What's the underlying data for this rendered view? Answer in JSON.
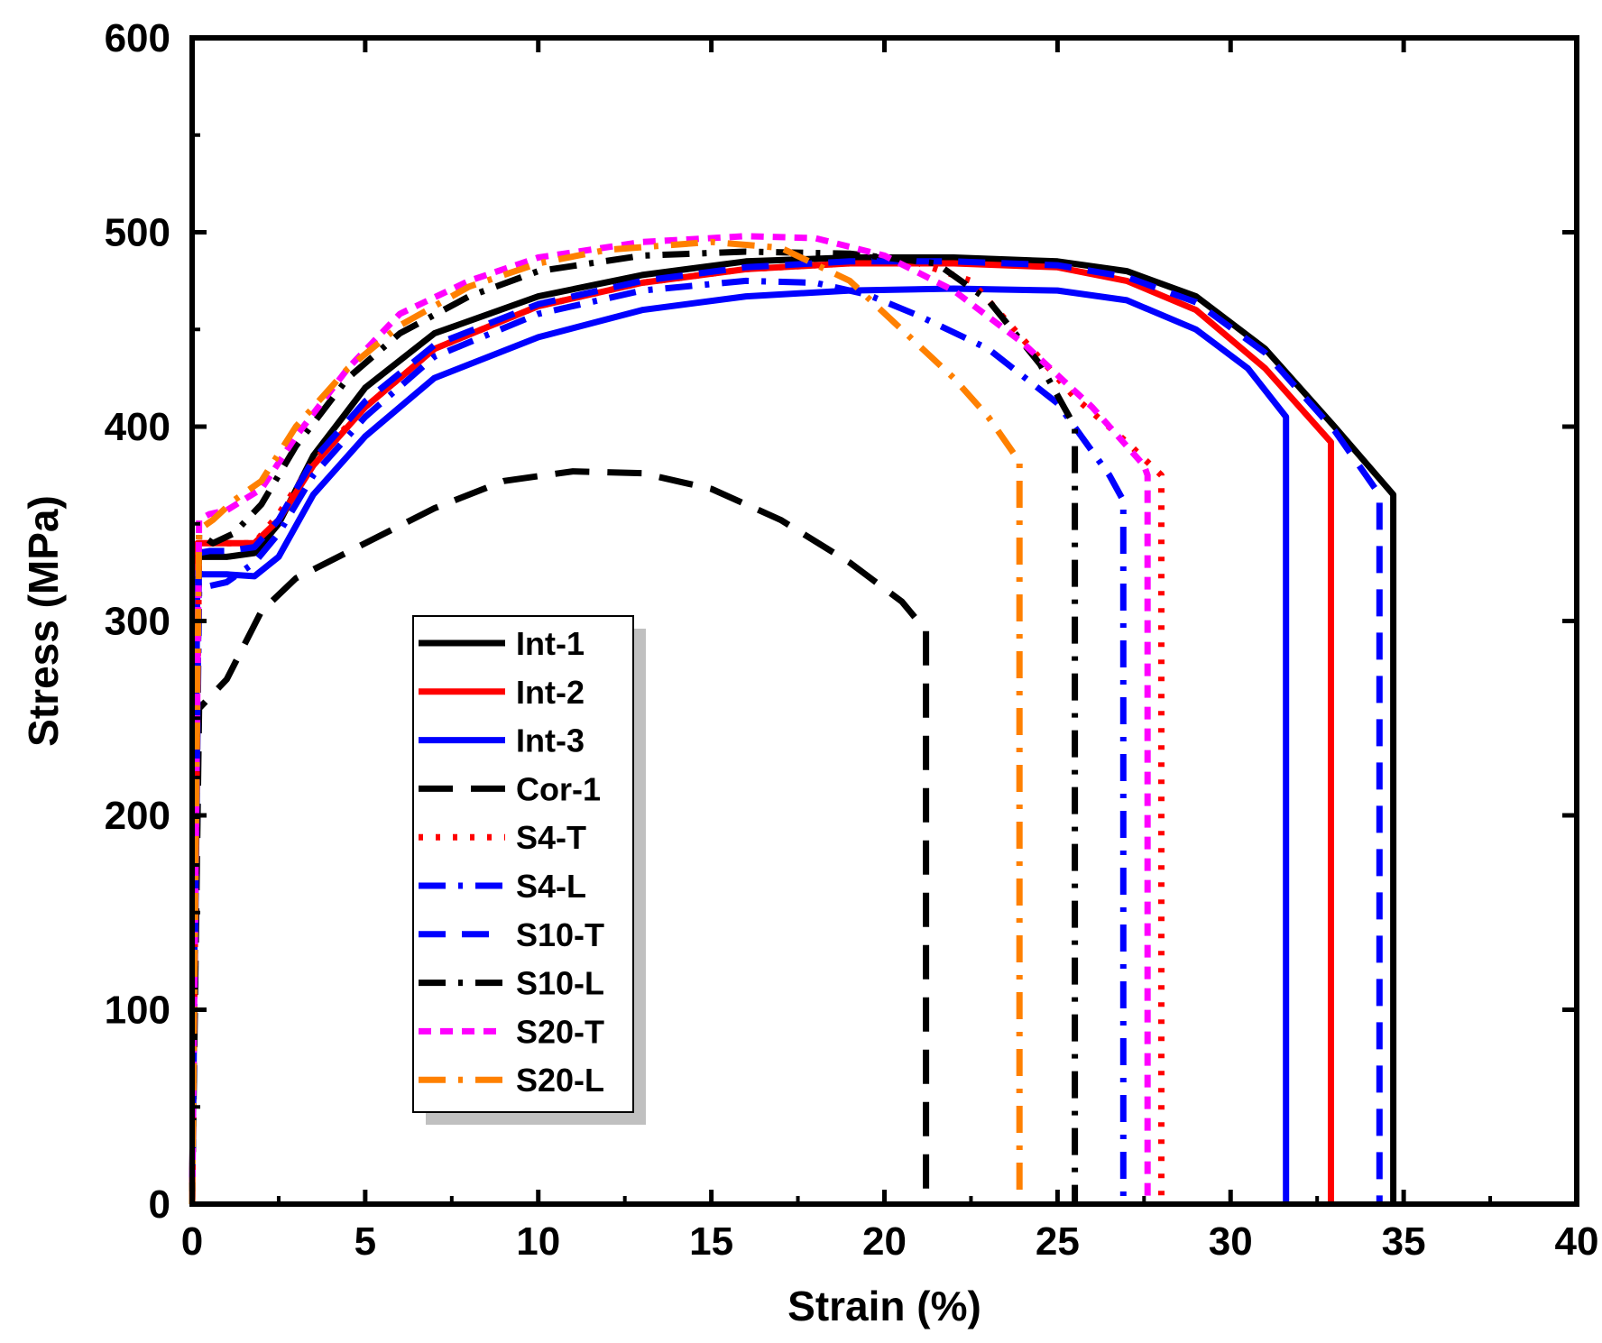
{
  "chart_data": {
    "type": "line",
    "title": "",
    "xlabel": "Strain (%)",
    "ylabel": "Stress (MPa)",
    "xlim": [
      0,
      40
    ],
    "ylim": [
      0,
      600
    ],
    "xticks": [
      0,
      5,
      10,
      15,
      20,
      25,
      30,
      35,
      40
    ],
    "yticks": [
      0,
      100,
      200,
      300,
      400,
      500,
      600
    ],
    "grid": false,
    "legend_position": "center-left",
    "series": [
      {
        "name": "Int-1",
        "color": "#000000",
        "dash": "solid",
        "x": [
          0,
          0.15,
          0.3,
          1.0,
          1.8,
          2.5,
          3.5,
          5,
          7,
          10,
          13,
          16,
          19,
          22,
          25,
          27,
          29,
          31,
          33,
          34.7,
          34.7
        ],
        "y": [
          0,
          335,
          333,
          333,
          335,
          350,
          385,
          420,
          448,
          467,
          478,
          485,
          487,
          487,
          485,
          480,
          467,
          440,
          400,
          365,
          0
        ]
      },
      {
        "name": "Int-2",
        "color": "#ff0000",
        "dash": "solid",
        "x": [
          0,
          0.15,
          0.3,
          1.0,
          1.8,
          2.5,
          3.5,
          5,
          7,
          10,
          13,
          16,
          19,
          22,
          25,
          27,
          29,
          31,
          32.9,
          32.9
        ],
        "y": [
          0,
          340,
          340,
          340,
          340,
          352,
          380,
          410,
          440,
          462,
          474,
          481,
          484,
          484,
          482,
          475,
          460,
          430,
          392,
          0
        ]
      },
      {
        "name": "Int-3",
        "color": "#0000ff",
        "dash": "solid",
        "x": [
          0,
          0.15,
          0.3,
          1.0,
          1.8,
          2.5,
          3.5,
          5,
          7,
          10,
          13,
          16,
          19,
          22,
          25,
          27,
          29,
          30.5,
          31.6,
          31.6
        ],
        "y": [
          0,
          325,
          324,
          324,
          323,
          333,
          365,
          395,
          425,
          446,
          460,
          467,
          470,
          471,
          470,
          465,
          450,
          430,
          405,
          0
        ]
      },
      {
        "name": "Cor-1",
        "color": "#000000",
        "dash": "long-dash",
        "x": [
          0,
          0.2,
          1.0,
          2.0,
          3.0,
          5,
          7,
          9,
          11,
          13,
          15,
          17,
          19,
          20.5,
          21.2,
          21.2
        ],
        "y": [
          0,
          255,
          270,
          305,
          322,
          340,
          358,
          372,
          377,
          376,
          368,
          352,
          330,
          310,
          295,
          0
        ]
      },
      {
        "name": "S4-T",
        "color": "#ff0000",
        "dash": "dot",
        "x": [
          0,
          0.2,
          0.5,
          1.0,
          1.8,
          2.5,
          3.5,
          5,
          7,
          10,
          13,
          16,
          19,
          21,
          22.5,
          24,
          25.5,
          27,
          28,
          28,
          28
        ],
        "y": [
          0,
          338,
          340,
          340,
          340,
          355,
          382,
          410,
          440,
          462,
          474,
          481,
          484,
          484,
          475,
          445,
          415,
          392,
          375,
          200,
          0
        ]
      },
      {
        "name": "S4-L",
        "color": "#0000ff",
        "dash": "dash-dot",
        "x": [
          0,
          0.2,
          0.5,
          1.0,
          1.8,
          2.5,
          3.5,
          5,
          7,
          10,
          13,
          16,
          18,
          19.5,
          21,
          23,
          25,
          26.5,
          26.9,
          26.9
        ],
        "y": [
          0,
          315,
          318,
          320,
          330,
          345,
          375,
          405,
          436,
          458,
          470,
          475,
          474,
          468,
          457,
          440,
          412,
          375,
          362,
          0
        ]
      },
      {
        "name": "S10-T",
        "color": "#0000ff",
        "dash": "dash",
        "x": [
          0,
          0.2,
          0.5,
          1.0,
          1.8,
          2.5,
          3.5,
          5,
          7,
          10,
          13,
          16,
          19,
          22,
          25,
          27,
          29,
          31,
          33,
          34.3,
          34.3
        ],
        "y": [
          0,
          335,
          336,
          336,
          338,
          352,
          383,
          413,
          442,
          463,
          475,
          482,
          485,
          485,
          483,
          477,
          464,
          438,
          398,
          365,
          0
        ]
      },
      {
        "name": "S10-L",
        "color": "#000000",
        "dash": "dash-dot",
        "x": [
          0,
          0.2,
          0.6,
          1.2,
          2.0,
          3.0,
          4.5,
          6,
          8,
          10,
          13,
          16,
          19,
          21.5,
          23,
          24.5,
          25.5,
          25.5
        ],
        "y": [
          0,
          345,
          340,
          345,
          360,
          390,
          425,
          448,
          467,
          480,
          488,
          490,
          489,
          484,
          465,
          432,
          400,
          0
        ]
      },
      {
        "name": "S20-T",
        "color": "#ff00ff",
        "dash": "short-dash",
        "x": [
          0,
          0.2,
          0.5,
          1.0,
          2.0,
          3.0,
          4.5,
          6,
          8,
          10,
          13,
          16,
          18,
          20,
          22,
          24,
          26,
          27.5,
          27.6,
          27.6
        ],
        "y": [
          0,
          352,
          355,
          357,
          368,
          395,
          430,
          458,
          475,
          487,
          495,
          498,
          497,
          488,
          470,
          443,
          410,
          380,
          375,
          0
        ]
      },
      {
        "name": "S20-L",
        "color": "#ff8000",
        "dash": "dash-dot",
        "x": [
          0,
          0.2,
          0.6,
          1.2,
          2.0,
          3.0,
          4.5,
          6,
          8,
          10,
          12,
          15,
          17,
          19,
          20.5,
          22,
          23,
          23.9,
          23.9
        ],
        "y": [
          0,
          347,
          352,
          362,
          372,
          400,
          430,
          452,
          472,
          484,
          491,
          495,
          492,
          475,
          450,
          425,
          405,
          382,
          0
        ]
      }
    ]
  }
}
